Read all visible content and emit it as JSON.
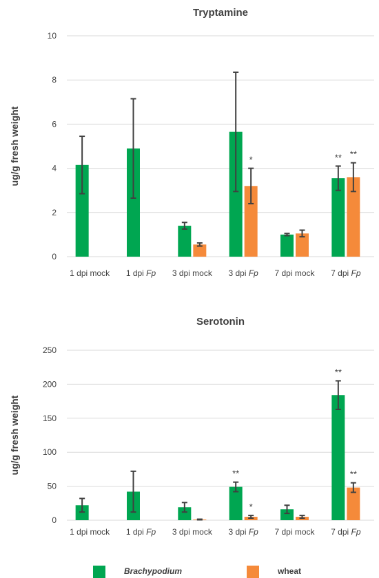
{
  "colors": {
    "brachypodium": "#00a651",
    "wheat": "#f58a3a"
  },
  "legend": [
    {
      "label": "Brachypodium",
      "color_key": "brachypodium",
      "italic": true
    },
    {
      "label": "wheat",
      "color_key": "wheat",
      "italic": false
    }
  ],
  "chart_data": [
    {
      "type": "bar",
      "title": "Tryptamine",
      "ylabel": "ug/g fresh weight",
      "ylim": [
        0,
        10
      ],
      "yticks": [
        0,
        2,
        4,
        6,
        8,
        10
      ],
      "grid": true,
      "categories": [
        {
          "prefix": "1 dpi ",
          "suffix": "mock",
          "italic_suffix": false
        },
        {
          "prefix": "1 dpi ",
          "suffix": "Fp",
          "italic_suffix": true
        },
        {
          "prefix": "3 dpi ",
          "suffix": "mock",
          "italic_suffix": false
        },
        {
          "prefix": "3 dpi ",
          "suffix": "Fp",
          "italic_suffix": true
        },
        {
          "prefix": "7 dpi ",
          "suffix": "mock",
          "italic_suffix": false
        },
        {
          "prefix": "7 dpi ",
          "suffix": "Fp",
          "italic_suffix": true
        }
      ],
      "series": [
        {
          "name": "Brachypodium",
          "color_key": "brachypodium",
          "values": [
            4.15,
            4.9,
            1.4,
            5.65,
            1.0,
            3.55
          ],
          "errors": [
            1.3,
            2.25,
            0.15,
            2.7,
            0.05,
            0.55
          ],
          "significance": [
            "",
            "",
            "",
            "",
            "",
            "**"
          ]
        },
        {
          "name": "wheat",
          "color_key": "wheat",
          "values": [
            null,
            null,
            0.55,
            3.2,
            1.05,
            3.6
          ],
          "errors": [
            null,
            null,
            0.07,
            0.8,
            0.15,
            0.65
          ],
          "significance": [
            "",
            "",
            "",
            "*",
            "",
            "**"
          ]
        }
      ]
    },
    {
      "type": "bar",
      "title": "Serotonin",
      "ylabel": "ug/g fresh weight",
      "ylim": [
        0,
        250
      ],
      "yticks": [
        0,
        50,
        100,
        150,
        200,
        250
      ],
      "grid": true,
      "categories": [
        {
          "prefix": "1 dpi ",
          "suffix": "mock",
          "italic_suffix": false
        },
        {
          "prefix": "1 dpi ",
          "suffix": "Fp",
          "italic_suffix": true
        },
        {
          "prefix": "3 dpi ",
          "suffix": "mock",
          "italic_suffix": false
        },
        {
          "prefix": "3 dpi ",
          "suffix": "Fp",
          "italic_suffix": true
        },
        {
          "prefix": "7 dpi ",
          "suffix": "mock",
          "italic_suffix": false
        },
        {
          "prefix": "7 dpi ",
          "suffix": "Fp",
          "italic_suffix": true
        }
      ],
      "series": [
        {
          "name": "Brachypodium",
          "color_key": "brachypodium",
          "values": [
            22,
            42,
            19,
            49,
            16,
            184
          ],
          "errors": [
            10,
            30,
            7,
            7,
            6,
            21
          ],
          "significance": [
            "",
            "",
            "",
            "**",
            "",
            "**"
          ]
        },
        {
          "name": "wheat",
          "color_key": "wheat",
          "values": [
            null,
            null,
            1,
            5,
            5,
            48
          ],
          "errors": [
            null,
            null,
            0.5,
            2,
            2,
            7
          ],
          "significance": [
            "",
            "",
            "",
            "*",
            "",
            "**"
          ]
        }
      ]
    }
  ]
}
